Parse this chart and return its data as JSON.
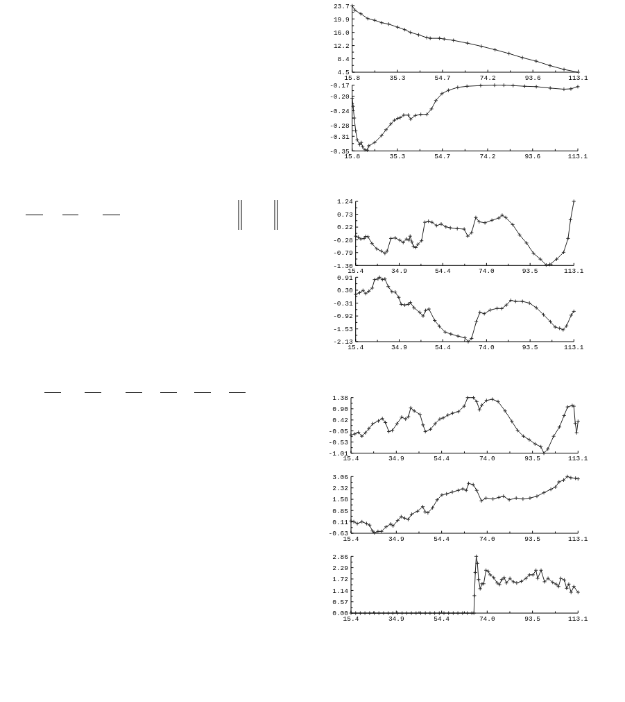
{
  "chart_data": [
    {
      "type": "line",
      "color": "#222222",
      "marker": "cross",
      "xlim": [
        15.8,
        113.1
      ],
      "ylim": [
        4.5,
        23.7
      ],
      "xticks": [
        15.8,
        {
          "value": 25.55,
          "label": null
        },
        35.3,
        {
          "value": 45.0,
          "label": null
        },
        54.7,
        {
          "value": 64.45,
          "label": null
        },
        74.2,
        {
          "value": 83.9,
          "label": null
        },
        93.6,
        {
          "value": 103.35,
          "label": null
        },
        113.1
      ],
      "yticks": [
        4.5,
        {
          "value": 6.45,
          "label": null
        },
        8.4,
        {
          "value": 10.3,
          "label": null
        },
        12.2,
        {
          "value": 14.1,
          "label": null
        },
        {
          "value": 16.0,
          "label": "16.0"
        },
        {
          "value": 17.95,
          "label": null
        },
        19.9,
        {
          "value": 21.8,
          "label": null
        },
        23.7
      ],
      "x": [
        15.8,
        17.0,
        19.5,
        22.5,
        25.5,
        28.5,
        31.5,
        35.4,
        38.4,
        40.9,
        44.4,
        47.9,
        49.4,
        53.4,
        55.4,
        59.4,
        65.4,
        71.4,
        77.3,
        83.3,
        89.1,
        95.0,
        101.0,
        107.0,
        113.1
      ],
      "values": [
        23.7,
        22.4,
        21.4,
        20.0,
        19.5,
        18.8,
        18.4,
        17.5,
        16.8,
        16.0,
        15.3,
        14.5,
        14.3,
        14.3,
        14.1,
        13.7,
        12.9,
        12.0,
        11.0,
        9.9,
        8.7,
        7.7,
        6.4,
        5.3,
        4.5
      ]
    },
    {
      "type": "line",
      "color": "#222222",
      "marker": "cross",
      "xlim": [
        15.8,
        113.1
      ],
      "ylim": [
        -0.35,
        -0.17
      ],
      "xticks": [
        15.8,
        {
          "value": 25.55,
          "label": null
        },
        35.3,
        {
          "value": 45.0,
          "label": null
        },
        54.7,
        {
          "value": 64.45,
          "label": null
        },
        74.2,
        {
          "value": 83.9,
          "label": null
        },
        93.6,
        {
          "value": 103.35,
          "label": null
        },
        113.1
      ],
      "yticks": [
        -0.35,
        {
          "value": -0.33,
          "label": null
        },
        -0.31,
        {
          "value": -0.295,
          "label": null
        },
        -0.28,
        {
          "value": -0.26,
          "label": null
        },
        -0.24,
        {
          "value": -0.22,
          "label": null
        },
        {
          "value": -0.2,
          "label": "-0.20"
        },
        {
          "value": -0.185,
          "label": null
        },
        -0.17
      ],
      "x": [
        15.8,
        16.2,
        16.7,
        17.3,
        18.0,
        19.0,
        19.7,
        20.3,
        21.3,
        22.3,
        23.0,
        25.5,
        28.5,
        30.4,
        32.5,
        34.0,
        35.5,
        36.5,
        38.0,
        40.0,
        41.0,
        43.0,
        45.4,
        48.0,
        50.0,
        51.9,
        54.5,
        57.3,
        61.3,
        65.3,
        71.2,
        77.2,
        81.2,
        85.2,
        90.2,
        95.2,
        101.2,
        107.1,
        110.1,
        113.1
      ],
      "values": [
        -0.206,
        -0.228,
        -0.26,
        -0.295,
        -0.32,
        -0.333,
        -0.327,
        -0.339,
        -0.347,
        -0.348,
        -0.336,
        -0.327,
        -0.308,
        -0.292,
        -0.276,
        -0.266,
        -0.261,
        -0.259,
        -0.252,
        -0.252,
        -0.263,
        -0.253,
        -0.25,
        -0.25,
        -0.235,
        -0.212,
        -0.193,
        -0.184,
        -0.176,
        -0.173,
        -0.171,
        -0.17,
        -0.17,
        -0.171,
        -0.173,
        -0.174,
        -0.178,
        -0.181,
        -0.18,
        -0.174
      ]
    },
    {
      "type": "line",
      "color": "#222222",
      "marker": "cross",
      "xlim": [
        15.4,
        113.1
      ],
      "ylim": [
        -1.3,
        1.24
      ],
      "xticks": [
        15.4,
        {
          "value": 25.15,
          "label": null
        },
        34.9,
        {
          "value": 44.65,
          "label": null
        },
        54.4,
        {
          "value": 64.2,
          "label": null
        },
        {
          "value": 74.0,
          "label": "74.0"
        },
        {
          "value": 83.75,
          "label": null
        },
        93.5,
        {
          "value": 103.3,
          "label": null
        },
        113.1
      ],
      "yticks": [
        {
          "value": -1.3,
          "label": "-1.30"
        },
        {
          "value": -1.045,
          "label": null
        },
        -0.79,
        {
          "value": -0.535,
          "label": null
        },
        -0.28,
        {
          "value": -0.03,
          "label": null
        },
        0.22,
        {
          "value": 0.475,
          "label": null
        },
        0.73,
        {
          "value": 0.985,
          "label": null
        },
        1.24
      ],
      "x": [
        15.4,
        16.6,
        17.7,
        19.2,
        19.9,
        20.9,
        22.7,
        24.8,
        26.9,
        28.5,
        29.5,
        31.2,
        33.1,
        35.2,
        36.7,
        38.2,
        39.3,
        39.8,
        40.6,
        41.3,
        42.3,
        43.3,
        44.9,
        46.4,
        48.0,
        49.6,
        51.6,
        53.7,
        55.8,
        57.8,
        60.9,
        64.0,
        65.6,
        67.3,
        69.2,
        70.7,
        73.3,
        76.4,
        79.5,
        81.0,
        82.6,
        85.7,
        88.8,
        91.9,
        95.0,
        98.1,
        100.7,
        102.3,
        105.4,
        108.5,
        110.5,
        111.6,
        113.1
      ],
      "values": [
        -0.14,
        -0.18,
        -0.25,
        -0.23,
        -0.15,
        -0.16,
        -0.43,
        -0.64,
        -0.73,
        -0.82,
        -0.73,
        -0.23,
        -0.21,
        -0.3,
        -0.39,
        -0.25,
        -0.3,
        -0.14,
        -0.37,
        -0.55,
        -0.59,
        -0.46,
        -0.32,
        0.41,
        0.45,
        0.41,
        0.28,
        0.34,
        0.23,
        0.19,
        0.16,
        0.14,
        -0.14,
        0.0,
        0.6,
        0.43,
        0.39,
        0.49,
        0.58,
        0.69,
        0.6,
        0.32,
        -0.09,
        -0.41,
        -0.82,
        -1.05,
        -1.28,
        -1.26,
        -1.05,
        -0.78,
        -0.23,
        0.51,
        1.24
      ]
    },
    {
      "type": "line",
      "color": "#222222",
      "marker": "cross",
      "xlim": [
        15.4,
        113.1
      ],
      "ylim": [
        -2.13,
        0.91
      ],
      "xticks": [
        15.4,
        {
          "value": 25.15,
          "label": null
        },
        34.9,
        {
          "value": 44.65,
          "label": null
        },
        54.4,
        {
          "value": 64.2,
          "label": null
        },
        {
          "value": 74.0,
          "label": "74.0"
        },
        {
          "value": 83.75,
          "label": null
        },
        93.5,
        {
          "value": 103.3,
          "label": null
        },
        113.1
      ],
      "yticks": [
        -2.13,
        {
          "value": -1.83,
          "label": null
        },
        -1.53,
        {
          "value": -1.225,
          "label": null
        },
        -0.92,
        {
          "value": -0.615,
          "label": null
        },
        -0.31,
        {
          "value": -0.005,
          "label": null
        },
        {
          "value": 0.3,
          "label": "0.30"
        },
        {
          "value": 0.605,
          "label": null
        },
        0.91
      ],
      "x": [
        15.4,
        17.2,
        18.7,
        19.9,
        21.3,
        22.8,
        23.9,
        25.4,
        26.1,
        27.4,
        28.5,
        30.0,
        31.6,
        33.1,
        34.7,
        35.8,
        37.4,
        38.9,
        39.9,
        41.5,
        44.1,
        45.6,
        46.7,
        48.2,
        50.8,
        52.9,
        55.5,
        58.0,
        61.2,
        64.3,
        65.8,
        67.3,
        69.4,
        71.0,
        73.0,
        75.6,
        78.7,
        80.8,
        82.9,
        84.9,
        87.0,
        90.1,
        93.2,
        96.3,
        99.5,
        102.6,
        104.7,
        106.7,
        108.3,
        109.8,
        111.9,
        113.1
      ],
      "values": [
        0.1,
        0.18,
        0.29,
        0.14,
        0.25,
        0.4,
        0.8,
        0.83,
        0.91,
        0.8,
        0.83,
        0.47,
        0.23,
        0.21,
        -0.04,
        -0.37,
        -0.4,
        -0.37,
        -0.28,
        -0.53,
        -0.75,
        -0.92,
        -0.66,
        -0.59,
        -1.13,
        -1.41,
        -1.68,
        -1.77,
        -1.87,
        -1.95,
        -2.13,
        -1.98,
        -1.19,
        -0.75,
        -0.81,
        -0.64,
        -0.56,
        -0.57,
        -0.4,
        -0.18,
        -0.23,
        -0.23,
        -0.31,
        -0.53,
        -0.86,
        -1.19,
        -1.44,
        -1.5,
        -1.57,
        -1.39,
        -0.88,
        -0.7
      ]
    },
    {
      "type": "line",
      "color": "#222222",
      "marker": "cross",
      "xlim": [
        15.4,
        113.1
      ],
      "ylim": [
        -1.01,
        1.38
      ],
      "xticks": [
        15.4,
        {
          "value": 25.15,
          "label": null
        },
        34.9,
        {
          "value": 44.65,
          "label": null
        },
        54.4,
        {
          "value": 64.2,
          "label": null
        },
        {
          "value": 74.0,
          "label": "74.0"
        },
        {
          "value": 83.75,
          "label": null
        },
        93.5,
        {
          "value": 103.3,
          "label": null
        },
        113.1
      ],
      "yticks": [
        -1.01,
        {
          "value": -0.77,
          "label": null
        },
        -0.53,
        {
          "value": -0.29,
          "label": null
        },
        -0.05,
        {
          "value": 0.185,
          "label": null
        },
        0.42,
        {
          "value": 0.66,
          "label": null
        },
        {
          "value": 0.9,
          "label": "0.90"
        },
        {
          "value": 1.14,
          "label": null
        },
        1.38
      ],
      "x": [
        15.4,
        17.1,
        18.6,
        20.1,
        21.6,
        23.1,
        24.8,
        27.2,
        28.9,
        30.2,
        31.7,
        33.2,
        35.2,
        37.2,
        38.9,
        40.1,
        41.1,
        42.6,
        45.1,
        46.4,
        47.4,
        49.6,
        51.6,
        53.6,
        55.1,
        57.1,
        59.1,
        61.6,
        64.1,
        65.6,
        68.1,
        69.5,
        70.7,
        71.7,
        73.7,
        76.2,
        78.7,
        81.7,
        84.6,
        87.1,
        89.6,
        92.1,
        94.6,
        97.1,
        98.4,
        100.1,
        102.6,
        105.1,
        107.1,
        108.6,
        110.6,
        111.3,
        111.9,
        112.5,
        113.1
      ],
      "values": [
        -0.23,
        -0.18,
        -0.11,
        -0.28,
        -0.13,
        0.05,
        0.26,
        0.38,
        0.48,
        0.31,
        -0.08,
        -0.03,
        0.26,
        0.54,
        0.46,
        0.56,
        0.94,
        0.81,
        0.66,
        0.21,
        -0.08,
        0.02,
        0.26,
        0.46,
        0.51,
        0.63,
        0.71,
        0.78,
        1.01,
        1.38,
        1.38,
        1.21,
        0.86,
        1.06,
        1.26,
        1.31,
        1.21,
        0.81,
        0.36,
        -0.03,
        -0.28,
        -0.43,
        -0.61,
        -0.73,
        -1.01,
        -0.83,
        -0.28,
        0.12,
        0.61,
        0.98,
        1.04,
        1.01,
        0.28,
        -0.13,
        0.36
      ]
    },
    {
      "type": "line",
      "color": "#222222",
      "marker": "cross",
      "xlim": [
        15.4,
        113.1
      ],
      "ylim": [
        -0.63,
        3.06
      ],
      "xticks": [
        15.4,
        {
          "value": 25.15,
          "label": null
        },
        34.9,
        {
          "value": 44.65,
          "label": null
        },
        54.4,
        {
          "value": 64.2,
          "label": null
        },
        {
          "value": 74.0,
          "label": "74.0"
        },
        {
          "value": 83.75,
          "label": null
        },
        93.5,
        {
          "value": 103.3,
          "label": null
        },
        113.1
      ],
      "yticks": [
        -0.63,
        {
          "value": -0.26,
          "label": null
        },
        0.11,
        {
          "value": 0.48,
          "label": null
        },
        0.85,
        {
          "value": 1.215,
          "label": null
        },
        1.58,
        {
          "value": 1.95,
          "label": null
        },
        2.32,
        {
          "value": 2.69,
          "label": null
        },
        3.06
      ],
      "x": [
        15.4,
        16.6,
        18.1,
        20.1,
        22.1,
        23.4,
        24.6,
        25.5,
        27.0,
        28.5,
        30.5,
        32.5,
        33.5,
        35.5,
        37.0,
        38.5,
        40.0,
        41.5,
        44.0,
        46.3,
        47.3,
        48.5,
        50.5,
        52.5,
        54.5,
        56.5,
        59.0,
        61.5,
        63.5,
        65.0,
        66.0,
        68.0,
        69.5,
        71.5,
        73.5,
        76.5,
        79.0,
        81.0,
        83.5,
        86.5,
        89.4,
        92.4,
        95.4,
        98.4,
        101.4,
        103.4,
        104.9,
        106.9,
        108.5,
        110.0,
        112.0,
        113.1
      ],
      "values": [
        0.17,
        0.12,
        0.0,
        0.12,
        0.0,
        -0.1,
        -0.48,
        -0.6,
        -0.51,
        -0.51,
        -0.21,
        -0.03,
        -0.15,
        0.2,
        0.45,
        0.35,
        0.27,
        0.61,
        0.8,
        1.1,
        0.76,
        0.7,
        1.03,
        1.55,
        1.86,
        1.93,
        2.05,
        2.16,
        2.26,
        2.16,
        2.61,
        2.53,
        2.16,
        1.48,
        1.66,
        1.6,
        1.7,
        1.78,
        1.55,
        1.66,
        1.6,
        1.66,
        1.78,
        2.01,
        2.23,
        2.38,
        2.71,
        2.83,
        3.06,
        2.98,
        2.95,
        2.91
      ]
    },
    {
      "type": "line",
      "color": "#222222",
      "marker": "cross",
      "xlim": [
        15.4,
        113.1
      ],
      "ylim": [
        0,
        2.86
      ],
      "xticks": [
        15.4,
        {
          "value": 25.15,
          "label": null
        },
        34.9,
        {
          "value": 44.65,
          "label": null
        },
        54.4,
        {
          "value": 64.2,
          "label": null
        },
        {
          "value": 74.0,
          "label": "74.0"
        },
        {
          "value": 83.75,
          "label": null
        },
        93.5,
        {
          "value": 103.3,
          "label": null
        },
        113.1
      ],
      "yticks": [
        {
          "value": 0,
          "label": "0.00"
        },
        {
          "value": 0.285,
          "label": null
        },
        0.57,
        {
          "value": 0.855,
          "label": null
        },
        1.14,
        {
          "value": 1.43,
          "label": null
        },
        1.72,
        {
          "value": 2.005,
          "label": null
        },
        2.29,
        {
          "value": 2.575,
          "label": null
        },
        2.86
      ],
      "x": [
        15.4,
        17.4,
        19.4,
        21.4,
        23.4,
        25.4,
        27.4,
        29.4,
        31.4,
        33.4,
        35.4,
        37.4,
        39.4,
        41.4,
        43.4,
        45.4,
        47.4,
        49.4,
        51.4,
        53.4,
        55.4,
        57.4,
        59.4,
        61.4,
        63.4,
        65.4,
        67.4,
        68.3,
        68.5,
        68.9,
        69.3,
        69.8,
        70.3,
        71.0,
        71.8,
        72.5,
        73.5,
        74.5,
        75.3,
        76.8,
        78.3,
        79.3,
        80.3,
        81.3,
        82.3,
        83.8,
        85.3,
        86.7,
        88.7,
        90.7,
        92.2,
        93.7,
        95.0,
        95.7,
        97.2,
        98.7,
        100.2,
        102.2,
        103.7,
        104.7,
        105.7,
        107.2,
        108.2,
        109.1,
        110.1,
        111.3,
        113.1
      ],
      "values": [
        0,
        0,
        0,
        0,
        0,
        0,
        0,
        0,
        0,
        0,
        0,
        0,
        0,
        0,
        0,
        0,
        0,
        0,
        0,
        0,
        0,
        0,
        0,
        0,
        0,
        0,
        0,
        0,
        0.88,
        2.05,
        2.86,
        2.51,
        1.69,
        1.23,
        1.48,
        1.48,
        2.16,
        2.1,
        1.93,
        1.79,
        1.52,
        1.44,
        1.69,
        1.79,
        1.52,
        1.75,
        1.58,
        1.52,
        1.6,
        1.75,
        1.93,
        1.93,
        2.16,
        1.75,
        2.16,
        1.58,
        1.75,
        1.55,
        1.46,
        1.34,
        1.75,
        1.67,
        1.25,
        1.46,
        1.05,
        1.34,
        1.05
      ]
    }
  ]
}
